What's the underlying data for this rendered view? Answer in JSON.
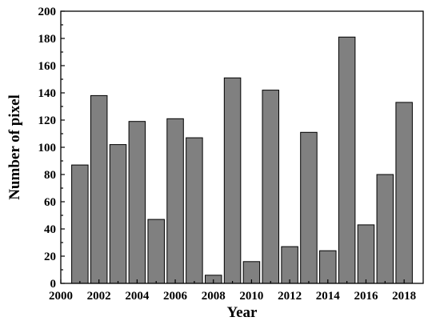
{
  "chart_data": {
    "type": "bar",
    "title": "",
    "xlabel": "Year",
    "ylabel": "Number of pixel",
    "x": [
      2001,
      2002,
      2003,
      2004,
      2005,
      2006,
      2007,
      2008,
      2009,
      2010,
      2011,
      2012,
      2013,
      2014,
      2015,
      2016,
      2017,
      2018
    ],
    "values": [
      87,
      138,
      102,
      119,
      47,
      121,
      107,
      6,
      151,
      16,
      142,
      27,
      111,
      24,
      181,
      43,
      80,
      133
    ],
    "xlim": [
      2000,
      2019
    ],
    "ylim": [
      0,
      200
    ],
    "xticks": [
      2000,
      2002,
      2004,
      2006,
      2008,
      2010,
      2012,
      2014,
      2016,
      2018
    ],
    "yticks": [
      0,
      20,
      40,
      60,
      80,
      100,
      120,
      140,
      160,
      180,
      200
    ],
    "grid": false,
    "colors": {
      "bar": "#808080",
      "edge": "#000000"
    }
  }
}
